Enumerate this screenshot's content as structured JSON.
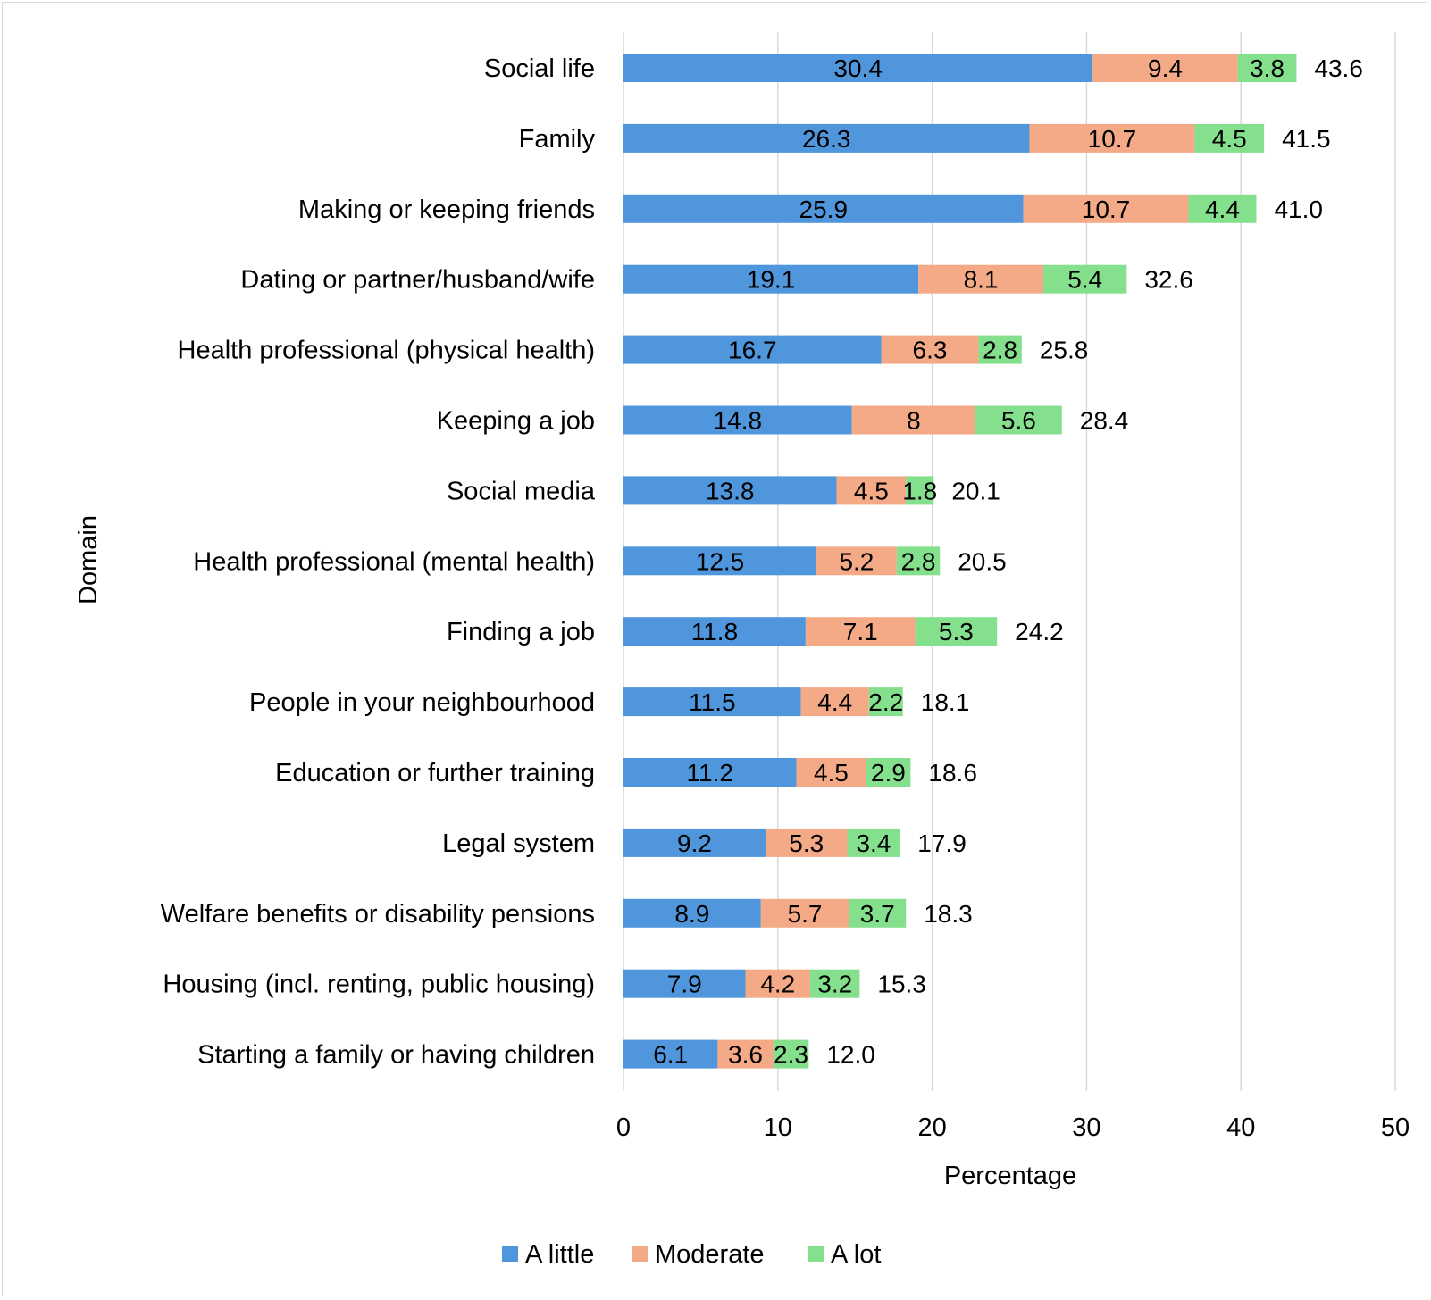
{
  "chart_data": {
    "type": "bar",
    "orientation": "horizontal",
    "stacked": true,
    "title": "",
    "xlabel": "Percentage",
    "ylabel": "Domain",
    "xlim": [
      0,
      50
    ],
    "xticks": [
      0,
      10,
      20,
      30,
      40,
      50
    ],
    "grid": true,
    "legend_position": "bottom",
    "categories": [
      "Social life",
      "Family",
      "Making or keeping friends",
      "Dating or partner/husband/wife",
      "Health professional (physical health)",
      "Keeping a job",
      "Social media",
      "Health professional (mental health)",
      "Finding a job",
      "People in your neighbourhood",
      "Education or further training",
      "Legal system",
      "Welfare benefits or disability pensions",
      "Housing (incl. renting, public housing)",
      "Starting a family or having children"
    ],
    "series": [
      {
        "name": "A little",
        "color": "#5096dc",
        "values": [
          30.4,
          26.3,
          25.9,
          19.1,
          16.7,
          14.8,
          13.8,
          12.5,
          11.8,
          11.5,
          11.2,
          9.2,
          8.9,
          7.9,
          6.1
        ],
        "labels": [
          "30.4",
          "26.3",
          "25.9",
          "19.1",
          "16.7",
          "14.8",
          "13.8",
          "12.5",
          "11.8",
          "11.5",
          "11.2",
          "9.2",
          "8.9",
          "7.9",
          "6.1"
        ]
      },
      {
        "name": "Moderate",
        "color": "#f4a987",
        "values": [
          9.4,
          10.7,
          10.7,
          8.1,
          6.3,
          8,
          4.5,
          5.2,
          7.1,
          4.4,
          4.5,
          5.3,
          5.7,
          4.2,
          3.6
        ],
        "labels": [
          "9.4",
          "10.7",
          "10.7",
          "8.1",
          "6.3",
          "8",
          "4.5",
          "5.2",
          "7.1",
          "4.4",
          "4.5",
          "5.3",
          "5.7",
          "4.2",
          "3.6"
        ]
      },
      {
        "name": "A lot",
        "color": "#84e08d",
        "values": [
          3.8,
          4.5,
          4.4,
          5.4,
          2.8,
          5.6,
          1.8,
          2.8,
          5.3,
          2.2,
          2.9,
          3.4,
          3.7,
          3.2,
          2.3
        ],
        "labels": [
          "3.8",
          "4.5",
          "4.4",
          "5.4",
          "2.8",
          "5.6",
          "1.8",
          "2.8",
          "5.3",
          "2.2",
          "2.9",
          "3.4",
          "3.7",
          "3.2",
          "2.3"
        ]
      }
    ],
    "totals": [
      43.6,
      41.5,
      41.0,
      32.6,
      25.8,
      28.4,
      20.1,
      20.5,
      24.2,
      18.1,
      18.6,
      17.9,
      18.3,
      15.3,
      12.0
    ],
    "total_labels": [
      "43.6",
      "41.5",
      "41.0",
      "32.6",
      "25.8",
      "28.4",
      "20.1",
      "20.5",
      "24.2",
      "18.1",
      "18.6",
      "17.9",
      "18.3",
      "15.3",
      "12.0"
    ]
  }
}
